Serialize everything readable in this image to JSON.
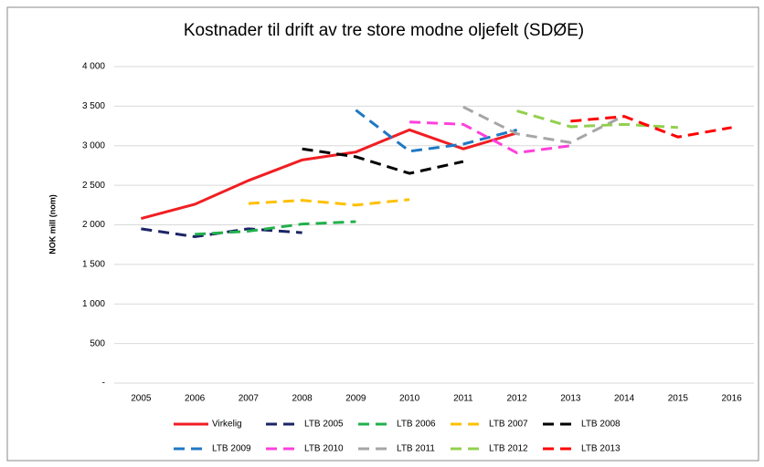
{
  "chart_data": {
    "type": "line",
    "title": "Kostnader til drift av tre store modne oljefelt (SDØE)",
    "y_label": "NOK mill (nom)",
    "categories": [
      "2005",
      "2006",
      "2007",
      "2008",
      "2009",
      "2010",
      "2011",
      "2012",
      "2013",
      "2014",
      "2015",
      "2016"
    ],
    "ylim": [
      0,
      4000
    ],
    "yticks": [
      {
        "value": 0,
        "label": "-"
      },
      500,
      {
        "value": 1000,
        "label": "1 000"
      },
      {
        "value": 1500,
        "label": "1 500"
      },
      {
        "value": 2000,
        "label": "2 000"
      },
      {
        "value": 2500,
        "label": "2 500"
      },
      {
        "value": 3000,
        "label": "3 000"
      },
      {
        "value": 3500,
        "label": "3 500"
      },
      {
        "value": 4000,
        "label": "4 000"
      }
    ],
    "grid": true,
    "legend": "bottom",
    "series": [
      {
        "name": "Virkelig",
        "color": "#f01e23",
        "line_style": "solid",
        "values": [
          2080,
          2260,
          2560,
          2820,
          2920,
          3200,
          2960,
          3160,
          null,
          null,
          null,
          null
        ]
      },
      {
        "name": "LTB 2005",
        "color": "#1c2566",
        "line_style": "dashed",
        "values": [
          1950,
          1850,
          1950,
          1900,
          null,
          null,
          null,
          null,
          null,
          null,
          null,
          null
        ]
      },
      {
        "name": "LTB 2006",
        "color": "#22b04b",
        "line_style": "dashed",
        "values": [
          null,
          1880,
          1920,
          2010,
          2040,
          null,
          null,
          null,
          null,
          null,
          null,
          null
        ]
      },
      {
        "name": "LTB 2007",
        "color": "#ffc000",
        "line_style": "dashed",
        "values": [
          null,
          null,
          2270,
          2310,
          2250,
          2320,
          null,
          null,
          null,
          null,
          null,
          null
        ]
      },
      {
        "name": "LTB 2008",
        "color": "#000000",
        "line_style": "dashed",
        "values": [
          null,
          null,
          null,
          2960,
          2860,
          2650,
          2800,
          null,
          null,
          null,
          null,
          null
        ]
      },
      {
        "name": "LTB 2009",
        "color": "#1f78c4",
        "line_style": "dashed",
        "values": [
          null,
          null,
          null,
          null,
          3450,
          2930,
          3020,
          3200,
          null,
          null,
          null,
          null
        ]
      },
      {
        "name": "LTB 2010",
        "color": "#ff40dc",
        "line_style": "dashed",
        "values": [
          null,
          null,
          null,
          null,
          null,
          3300,
          3270,
          2910,
          3000,
          null,
          null,
          null
        ]
      },
      {
        "name": "LTB 2011",
        "color": "#a6a6a6",
        "line_style": "dashed",
        "values": [
          null,
          null,
          null,
          null,
          null,
          null,
          3490,
          3150,
          3040,
          3380,
          null,
          null
        ]
      },
      {
        "name": "LTB 2012",
        "color": "#92d050",
        "line_style": "dashed",
        "values": [
          null,
          null,
          null,
          null,
          null,
          null,
          null,
          3440,
          3240,
          3270,
          3230,
          null
        ]
      },
      {
        "name": "LTB 2013",
        "color": "#ff0000",
        "line_style": "dashed",
        "values": [
          null,
          null,
          null,
          null,
          null,
          null,
          null,
          null,
          3310,
          3370,
          3110,
          3230
        ]
      }
    ]
  }
}
